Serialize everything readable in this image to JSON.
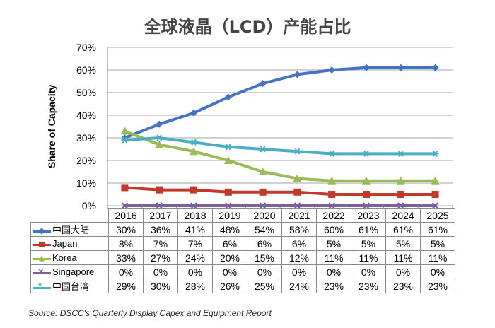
{
  "title": "全球液晶（LCD）产能占比",
  "source": "Source: DSCC's Quarterly Display Capex and Equipment Report",
  "chart_data": {
    "type": "line",
    "title": "全球液晶（LCD）产能占比",
    "xlabel": "",
    "ylabel": "Share of Capacity",
    "ylim": [
      0,
      70
    ],
    "yticks": [
      "0%",
      "10%",
      "20%",
      "30%",
      "40%",
      "50%",
      "60%",
      "70%"
    ],
    "grid": true,
    "categories": [
      "2016",
      "2017",
      "2018",
      "2019",
      "2020",
      "2021",
      "2022",
      "2023",
      "2024",
      "2025"
    ],
    "series": [
      {
        "name": "中国大陆",
        "color": "#4472c4",
        "marker": "diamond",
        "values": [
          30,
          36,
          41,
          48,
          54,
          58,
          60,
          61,
          61,
          61
        ],
        "labels": [
          "30%",
          "36%",
          "41%",
          "48%",
          "54%",
          "58%",
          "60%",
          "61%",
          "61%",
          "61%"
        ]
      },
      {
        "name": "Japan",
        "color": "#c0392b",
        "marker": "square",
        "values": [
          8,
          7,
          7,
          6,
          6,
          6,
          5,
          5,
          5,
          5
        ],
        "labels": [
          "8%",
          "7%",
          "7%",
          "6%",
          "6%",
          "6%",
          "5%",
          "5%",
          "5%",
          "5%"
        ]
      },
      {
        "name": "Korea",
        "color": "#9bbb59",
        "marker": "triangle",
        "values": [
          33,
          27,
          24,
          20,
          15,
          12,
          11,
          11,
          11,
          11
        ],
        "labels": [
          "33%",
          "27%",
          "24%",
          "20%",
          "15%",
          "12%",
          "11%",
          "11%",
          "11%",
          "11%"
        ]
      },
      {
        "name": "Singapore",
        "color": "#7e5f9e",
        "marker": "x",
        "values": [
          0,
          0,
          0,
          0,
          0,
          0,
          0,
          0,
          0,
          0
        ],
        "labels": [
          "0%",
          "0%",
          "0%",
          "0%",
          "0%",
          "0%",
          "0%",
          "0%",
          "0%",
          "0%"
        ]
      },
      {
        "name": "中国台湾",
        "color": "#4bacc6",
        "marker": "star",
        "values": [
          29,
          30,
          28,
          26,
          25,
          24,
          23,
          23,
          23,
          23
        ],
        "labels": [
          "29%",
          "30%",
          "28%",
          "26%",
          "25%",
          "24%",
          "23%",
          "23%",
          "23%",
          "23%"
        ]
      }
    ]
  }
}
